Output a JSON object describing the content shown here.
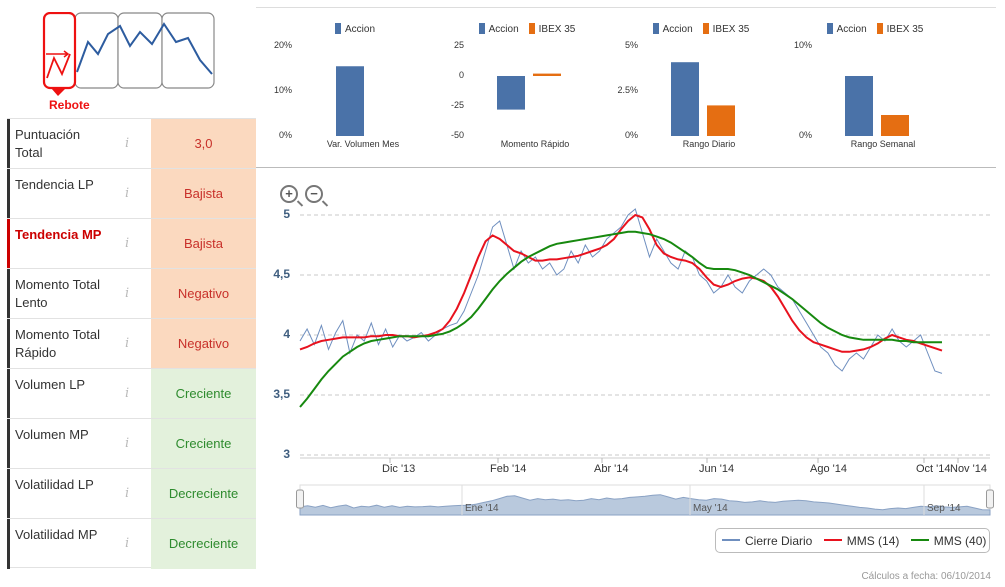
{
  "logo": {
    "label": "Rebote"
  },
  "metrics": [
    {
      "name": "Puntuación Total",
      "value": "3,0",
      "tone": "red",
      "active": false
    },
    {
      "name": "Tendencia LP",
      "value": "Bajista",
      "tone": "red",
      "active": false
    },
    {
      "name": "Tendencia MP",
      "value": "Bajista",
      "tone": "red",
      "active": true
    },
    {
      "name": "Momento Total Lento",
      "value": "Negativo",
      "tone": "red",
      "active": false
    },
    {
      "name": "Momento Total Rápido",
      "value": "Negativo",
      "tone": "red",
      "active": false
    },
    {
      "name": "Volumen LP",
      "value": "Creciente",
      "tone": "green",
      "active": false
    },
    {
      "name": "Volumen MP",
      "value": "Creciente",
      "tone": "green",
      "active": false
    },
    {
      "name": "Volatilidad LP",
      "value": "Decreciente",
      "tone": "green",
      "active": false
    },
    {
      "name": "Volatilidad MP",
      "value": "Decreciente",
      "tone": "green",
      "active": false
    }
  ],
  "info_icon": "i",
  "colors": {
    "accion": "#4a72a8",
    "ibex": "#e56e12",
    "price": "#6f8fbf",
    "mms14": "#e8121e",
    "mms40": "#17890f",
    "red_bg": "#fbd9bf",
    "green_bg": "#e3f1dc"
  },
  "mini_charts": [
    {
      "type": "bar",
      "legend": [
        "Accion"
      ],
      "xlabel": "Var. Volumen Mes",
      "yticks": [
        "20%",
        "10%",
        "0%"
      ],
      "ylim": [
        0,
        20
      ],
      "values": [
        15.5
      ]
    },
    {
      "type": "bar",
      "legend": [
        "Accion",
        "IBEX 35"
      ],
      "xlabel": "Momento Rápido",
      "yticks": [
        "25",
        "0",
        "-25",
        "-50"
      ],
      "ylim": [
        -50,
        25
      ],
      "values": [
        -28,
        2
      ]
    },
    {
      "type": "bar",
      "legend": [
        "Accion",
        "IBEX 35"
      ],
      "xlabel": "Rango Diario",
      "yticks": [
        "5%",
        "2.5%",
        "0%"
      ],
      "ylim": [
        0,
        5
      ],
      "values": [
        4.1,
        1.7
      ]
    },
    {
      "type": "bar",
      "legend": [
        "Accion",
        "IBEX 35"
      ],
      "xlabel": "Rango Semanal",
      "yticks": [
        "10%",
        "0%"
      ],
      "ylim": [
        0,
        15
      ],
      "values": [
        10,
        3.5
      ]
    }
  ],
  "chart_data": {
    "type": "line",
    "yticks": [
      "5",
      "4,5",
      "4",
      "3,5",
      "3"
    ],
    "ylim": [
      3,
      5
    ],
    "xticks": [
      "Dic '13",
      "Feb '14",
      "Abr '14",
      "Jun '14",
      "Ago '14",
      "Oct '14",
      "Nov '14"
    ],
    "navigator_ticks": [
      "Ene '14",
      "May '14",
      "Sep '14"
    ],
    "legend": [
      "Cierre Diario",
      "MMS (14)",
      "MMS (40)"
    ],
    "series": [
      {
        "name": "Cierre Diario",
        "values": [
          3.95,
          4.05,
          3.92,
          4.08,
          3.88,
          4.02,
          4.12,
          3.85,
          4.0,
          3.95,
          4.1,
          3.92,
          4.05,
          3.9,
          4.0,
          3.95,
          3.98,
          4.02,
          3.95,
          4.0,
          4.05,
          4.08,
          4.1,
          4.2,
          4.35,
          4.5,
          4.7,
          4.9,
          4.95,
          4.75,
          4.55,
          4.7,
          4.6,
          4.65,
          4.55,
          4.6,
          4.5,
          4.55,
          4.7,
          4.6,
          4.75,
          4.65,
          4.7,
          4.8,
          4.85,
          4.9,
          5.0,
          5.05,
          4.85,
          4.65,
          4.8,
          4.7,
          4.6,
          4.55,
          4.7,
          4.65,
          4.5,
          4.45,
          4.35,
          4.4,
          4.5,
          4.4,
          4.35,
          4.45,
          4.5,
          4.55,
          4.5,
          4.4,
          4.35,
          4.3,
          4.2,
          4.1,
          4.0,
          3.9,
          3.85,
          3.75,
          3.7,
          3.8,
          3.85,
          3.8,
          3.9,
          4.0,
          3.95,
          4.05,
          3.95,
          3.9,
          3.95,
          4.0,
          3.85,
          3.7,
          3.68
        ]
      },
      {
        "name": "MMS (14)",
        "values": [
          3.88,
          3.9,
          3.93,
          3.95,
          3.96,
          3.97,
          3.98,
          3.98,
          3.98,
          3.98,
          3.99,
          3.99,
          4.0,
          4.0,
          3.99,
          3.99,
          3.98,
          3.99,
          4.0,
          4.02,
          4.05,
          4.12,
          4.22,
          4.35,
          4.5,
          4.65,
          4.78,
          4.83,
          4.8,
          4.75,
          4.7,
          4.68,
          4.65,
          4.62,
          4.62,
          4.63,
          4.63,
          4.64,
          4.65,
          4.66,
          4.68,
          4.7,
          4.72,
          4.75,
          4.8,
          4.88,
          4.95,
          5.0,
          4.98,
          4.88,
          4.75,
          4.68,
          4.65,
          4.63,
          4.62,
          4.6,
          4.55,
          4.48,
          4.42,
          4.4,
          4.42,
          4.45,
          4.47,
          4.48,
          4.47,
          4.45,
          4.4,
          4.32,
          4.22,
          4.12,
          4.04,
          3.98,
          3.94,
          3.92,
          3.9,
          3.88,
          3.86,
          3.86,
          3.87,
          3.88,
          3.9,
          3.93,
          3.97,
          4.0,
          3.98,
          3.96,
          3.95,
          3.93,
          3.91,
          3.89,
          3.87
        ]
      },
      {
        "name": "MMS (40)",
        "values": [
          3.4,
          3.47,
          3.55,
          3.63,
          3.7,
          3.76,
          3.82,
          3.86,
          3.9,
          3.93,
          3.95,
          3.96,
          3.97,
          3.98,
          3.99,
          3.99,
          3.99,
          3.99,
          3.99,
          4.0,
          4.01,
          4.03,
          4.06,
          4.1,
          4.15,
          4.22,
          4.3,
          4.38,
          4.45,
          4.51,
          4.56,
          4.61,
          4.65,
          4.68,
          4.71,
          4.74,
          4.76,
          4.77,
          4.78,
          4.79,
          4.8,
          4.81,
          4.82,
          4.83,
          4.84,
          4.85,
          4.86,
          4.86,
          4.85,
          4.84,
          4.82,
          4.8,
          4.77,
          4.73,
          4.69,
          4.65,
          4.6,
          4.56,
          4.55,
          4.55,
          4.55,
          4.54,
          4.52,
          4.5,
          4.47,
          4.44,
          4.41,
          4.38,
          4.34,
          4.3,
          4.25,
          4.2,
          4.15,
          4.1,
          4.06,
          4.03,
          4.0,
          3.98,
          3.97,
          3.96,
          3.96,
          3.96,
          3.96,
          3.96,
          3.95,
          3.95,
          3.94,
          3.94,
          3.94,
          3.94,
          3.94
        ]
      }
    ]
  },
  "footer": {
    "text": "Cálculos a fecha: 06/10/2014"
  }
}
